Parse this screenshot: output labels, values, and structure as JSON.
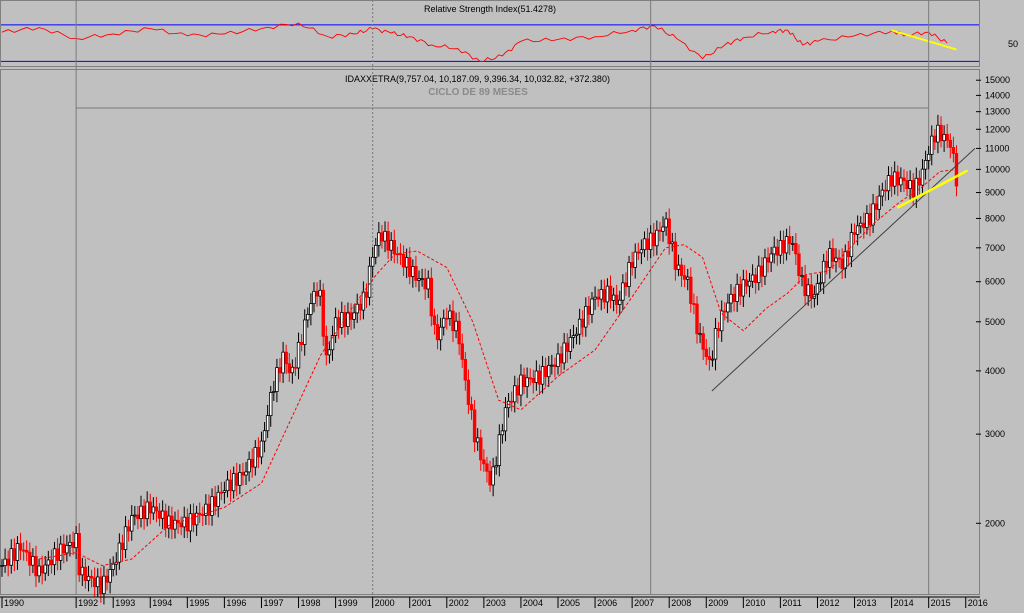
{
  "rsi_panel": {
    "title": "Relative Strength Index(51.4278)",
    "tick_label": "50",
    "upper_band": 70,
    "lower_band": 30,
    "line_color": "#ff0000",
    "band_color": "#0000ff"
  },
  "price_panel": {
    "header": "IDAXXETRA(9,757.04, 10,187.09, 9,396.34, 10,032.82, +372.380)",
    "cycle_label": "CICLO DE 89 MESES",
    "y_ticks": [
      "15000",
      "14000",
      "13000",
      "12000",
      "11000",
      "10000",
      "9000",
      "8000",
      "7000",
      "6000",
      "5000",
      "4000",
      "3000",
      "2000"
    ],
    "x_ticks": [
      "1990",
      "1992",
      "1993",
      "1994",
      "1995",
      "1996",
      "1997",
      "1998",
      "1999",
      "2000",
      "2001",
      "2002",
      "2003",
      "2004",
      "2005",
      "2006",
      "2007",
      "2008",
      "2009",
      "2010",
      "2011",
      "2012",
      "2013",
      "2014",
      "2015",
      "2016"
    ],
    "up_color": "#000000",
    "down_color": "#ff0000",
    "ma_color": "#ff0000",
    "highlight_color": "#ffff00"
  },
  "chart_data": {
    "type": "line",
    "title": "IDAXXETRA(9,757.04, 10,187.09, 9,396.34, 10,032.82, +372.380)",
    "subtitle": "CICLO DE 89 MESES",
    "y_scale": "log",
    "ylim": [
      1450,
      15500
    ],
    "xlim": [
      1990.0,
      2016.25
    ],
    "grid": false,
    "series": [
      {
        "kind": "monthly-candles-approx",
        "x": [
          1990.0,
          1990.5,
          1991.0,
          1991.5,
          1992.0,
          1992.1,
          1992.7,
          1993.0,
          1993.5,
          1994.0,
          1994.2,
          1994.5,
          1995.0,
          1995.2,
          1995.6,
          1996.0,
          1996.5,
          1997.0,
          1997.3,
          1997.6,
          1997.8,
          1998.0,
          1998.3,
          1998.55,
          1998.75,
          1999.0,
          1999.4,
          1999.8,
          2000.0,
          2000.2,
          2000.6,
          2000.9,
          2001.2,
          2001.5,
          2001.7,
          2002.0,
          2002.3,
          2002.5,
          2002.75,
          2003.0,
          2003.2,
          2003.6,
          2004.0,
          2004.5,
          2005.0,
          2005.5,
          2006.0,
          2006.4,
          2006.6,
          2007.0,
          2007.3,
          2007.6,
          2007.9,
          2008.2,
          2008.5,
          2008.8,
          2009.1,
          2009.3,
          2009.6,
          2010.0,
          2010.4,
          2010.8,
          2011.0,
          2011.3,
          2011.6,
          2011.9,
          2012.3,
          2012.7,
          2013.0,
          2013.4,
          2013.8,
          2014.0,
          2014.3,
          2014.6,
          2014.8,
          2015.0,
          2015.2,
          2015.4,
          2015.6,
          2015.75
        ],
        "close": [
          1650,
          1800,
          1600,
          1750,
          1850,
          1600,
          1500,
          1650,
          2050,
          2150,
          2100,
          2000,
          2000,
          2050,
          2150,
          2350,
          2500,
          2850,
          3700,
          4300,
          3900,
          4400,
          5400,
          5900,
          4200,
          5000,
          5100,
          5600,
          6800,
          7500,
          6900,
          6500,
          6100,
          5900,
          4600,
          5200,
          4800,
          3800,
          3000,
          2600,
          2400,
          3400,
          3800,
          3900,
          4200,
          4800,
          5600,
          5700,
          5400,
          6600,
          7100,
          7300,
          7900,
          6400,
          6000,
          4700,
          4100,
          4900,
          5500,
          5900,
          6200,
          6900,
          7000,
          7300,
          5900,
          5600,
          6800,
          6500,
          7600,
          8000,
          9200,
          9600,
          9500,
          9100,
          9700,
          10900,
          11900,
          11600,
          11200,
          9600
        ]
      },
      {
        "name": "",
        "kind": "moving-average",
        "x": [
          1991.0,
          1992.0,
          1992.7,
          1993.5,
          1994.5,
          1995.4,
          1996.0,
          1997.0,
          1997.7,
          1998.6,
          1999.5,
          2000.1,
          2000.6,
          2001.2,
          2002.0,
          2002.7,
          2003.4,
          2004.0,
          2005.0,
          2006.0,
          2007.0,
          2007.9,
          2008.4,
          2008.9,
          2009.4,
          2010.0,
          2010.6,
          2011.2,
          2011.7,
          2012.3,
          2012.8,
          2013.5,
          2014.2,
          2014.8,
          2015.3,
          2015.75
        ],
        "values": [
          1700,
          1750,
          1650,
          1700,
          1980,
          2080,
          2150,
          2400,
          3100,
          4300,
          5400,
          6200,
          6800,
          6900,
          6400,
          5000,
          3500,
          3350,
          3900,
          4400,
          5600,
          7000,
          7100,
          6700,
          5200,
          4800,
          5300,
          5700,
          6200,
          6300,
          6900,
          7800,
          8600,
          9200,
          9900,
          10000
        ]
      }
    ],
    "trendlines": [
      {
        "x": [
          2009.15,
          2016.25
        ],
        "y": [
          3650,
          11000
        ],
        "color": "#404040"
      },
      {
        "x": [
          2014.15,
          2016.05
        ],
        "y": [
          8400,
          9950
        ],
        "color": "#ffff00"
      }
    ],
    "vertical_markers": [
      1992.0,
      2000.0,
      2007.5,
      2015.0
    ],
    "cycle_bracket": {
      "from": 1992.0,
      "to": 2015.0,
      "label": "CICLO DE 89 MESES"
    },
    "rsi_series": {
      "x": [
        1990.0,
        1991.0,
        1992.0,
        1993.0,
        1994.0,
        1995.0,
        1996.0,
        1997.0,
        1998.0,
        1998.8,
        1999.5,
        2000.0,
        2000.5,
        2001.0,
        2001.6,
        2002.3,
        2002.9,
        2003.5,
        2004.0,
        2005.0,
        2006.0,
        2007.0,
        2007.6,
        2008.2,
        2008.9,
        2009.5,
        2010.0,
        2010.8,
        2011.2,
        2011.6,
        2012.0,
        2013.0,
        2014.0,
        2014.4,
        2015.0,
        2015.5
      ],
      "values": [
        62,
        67,
        55,
        60,
        66,
        58,
        60,
        66,
        72,
        57,
        60,
        66,
        61,
        57,
        48,
        44,
        30,
        36,
        52,
        54,
        57,
        64,
        69,
        55,
        33,
        48,
        56,
        63,
        64,
        48,
        52,
        58,
        63,
        59,
        62,
        50
      ],
      "ylim": [
        25,
        95
      ],
      "divergence_line": {
        "x": [
          2014.0,
          2015.75
        ],
        "y": [
          64,
          43
        ]
      }
    }
  }
}
